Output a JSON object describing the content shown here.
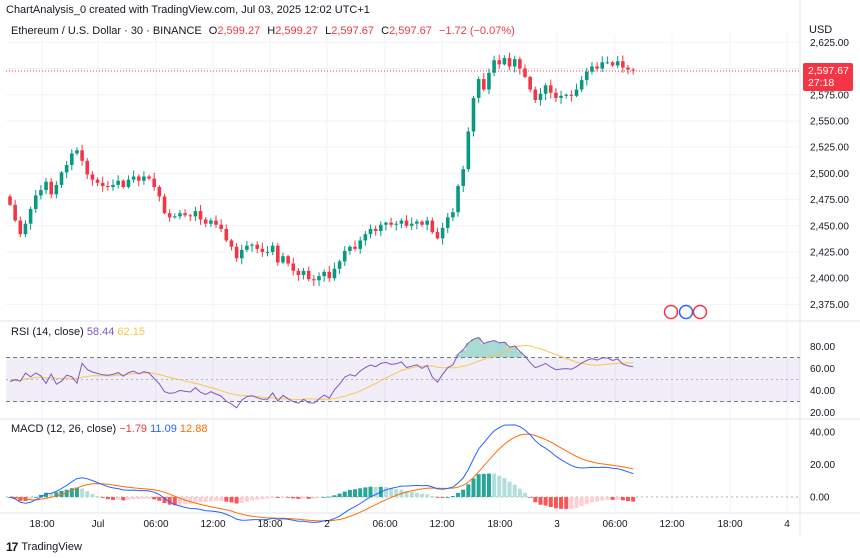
{
  "header": {
    "attribution": "ChartAnalysis_0 created with TradingView.com, Jul 03, 2025 12:02 UTC+1"
  },
  "legend": {
    "symbol": "Ethereum / U.S. Dollar · 30 · BINANCE",
    "o_label": "O",
    "o_value": "2,599.27",
    "h_label": "H",
    "h_value": "2,599.27",
    "l_label": "L",
    "l_value": "2,597.67",
    "c_label": "C",
    "c_value": "2,597.67",
    "change": "−1.72 (−0.07%)"
  },
  "currency": "USD",
  "price_tag": {
    "price": "2,597.67",
    "countdown": "27:18"
  },
  "rsi": {
    "label": "RSI (14, close)",
    "value": "58.44",
    "ma": "62.15"
  },
  "macd": {
    "label": "MACD (12, 26, close)",
    "hist": "−1.79",
    "macd": "11.09",
    "signal": "12.88"
  },
  "footer": {
    "brand": "TradingView"
  },
  "colors": {
    "up": "#089981",
    "down": "#f23645",
    "rsi": "#7e57c2",
    "rsi_ma": "#f7c948",
    "macd": "#2962ff",
    "signal": "#ff6d00"
  },
  "chart_data": [
    {
      "type": "candlestick",
      "title": "Ethereum / U.S. Dollar · 30 · BINANCE",
      "ylabel": "USD",
      "ylim": [
        2362,
        2633
      ],
      "y_ticks": [
        "2,625.00",
        "2,600.00",
        "2,575.00",
        "2,550.00",
        "2,525.00",
        "2,500.00",
        "2,475.00",
        "2,450.00",
        "2,425.00",
        "2,400.00",
        "2,375.00"
      ],
      "y_tick_values": [
        2625,
        2600,
        2575,
        2550,
        2525,
        2500,
        2475,
        2450,
        2425,
        2400,
        2375
      ],
      "x_ticks": [
        "18:00",
        "Jul",
        "06:00",
        "12:00",
        "18:00",
        "2",
        "06:00",
        "12:00",
        "18:00",
        "3",
        "06:00",
        "12:00",
        "18:00",
        "4"
      ],
      "last_price": 2597.67,
      "close": [
        2470,
        2455,
        2442,
        2452,
        2466,
        2479,
        2484,
        2492,
        2480,
        2489,
        2501,
        2508,
        2519,
        2522,
        2512,
        2499,
        2494,
        2491,
        2488,
        2487,
        2489,
        2493,
        2487,
        2494,
        2497,
        2493,
        2497,
        2495,
        2487,
        2478,
        2462,
        2458,
        2459,
        2462,
        2460,
        2459,
        2464,
        2456,
        2452,
        2455,
        2451,
        2447,
        2436,
        2430,
        2419,
        2427,
        2431,
        2432,
        2428,
        2425,
        2425,
        2431,
        2415,
        2421,
        2414,
        2407,
        2403,
        2407,
        2399,
        2398,
        2402,
        2406,
        2400,
        2409,
        2416,
        2426,
        2430,
        2428,
        2436,
        2442,
        2447,
        2445,
        2451,
        2453,
        2451,
        2452,
        2455,
        2450,
        2452,
        2454,
        2451,
        2455,
        2444,
        2438,
        2448,
        2458,
        2463,
        2488,
        2504,
        2540,
        2572,
        2590,
        2580,
        2596,
        2608,
        2604,
        2610,
        2602,
        2609,
        2600,
        2592,
        2580,
        2570,
        2576,
        2584,
        2577,
        2572,
        2574,
        2575,
        2574,
        2580,
        2589,
        2597,
        2602,
        2600,
        2606,
        2606,
        2603,
        2607,
        2601,
        2599,
        2598
      ],
      "rsi_ylim": [
        15,
        95
      ],
      "rsi_ticks": [
        80,
        60,
        40,
        20
      ],
      "rsi_band": [
        30,
        70
      ],
      "macd_ylim": [
        -8,
        45
      ],
      "macd_ticks": [
        "40.00",
        "20.00",
        "0.00"
      ],
      "macd_tick_values": [
        40,
        20,
        0
      ]
    }
  ]
}
